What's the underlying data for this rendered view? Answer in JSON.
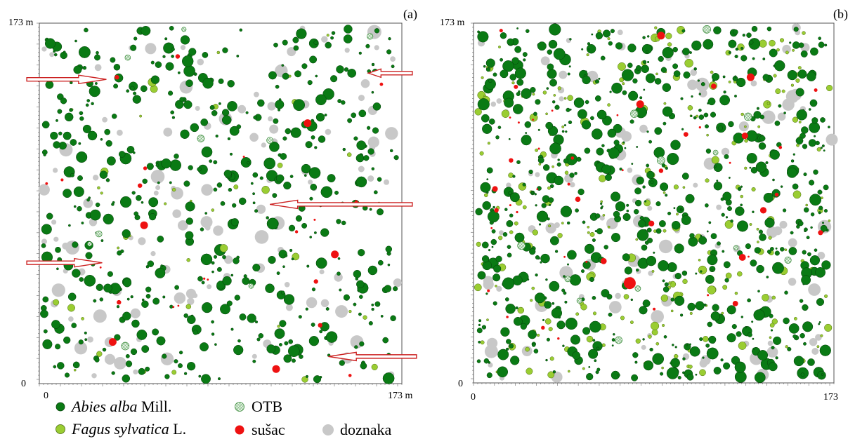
{
  "figure": {
    "panels": [
      {
        "tag": "(a)",
        "x_min_label": "0",
        "x_max_label": "173 m",
        "y_min_label": "0",
        "y_max_label": "173 m"
      },
      {
        "tag": "(b)",
        "x_min_label": "0",
        "x_max_label": "173",
        "y_min_label": "0",
        "y_max_label": "173 m"
      }
    ],
    "legend": {
      "abies_italic": "Abies alba",
      "abies_rest": " Mill.",
      "fagus_italic": "Fagus sylvatica",
      "fagus_rest": " L.",
      "otb": "OTB",
      "susac": "sušac",
      "doznaka": "doznaka"
    }
  },
  "colors": {
    "abies": "#0a7a14",
    "abies_stroke": "#063d0a",
    "fagus": "#9acd32",
    "fagus_stroke": "#4a6a10",
    "susac": "#ee1111",
    "doznaka": "#c8c8c8",
    "otb_fill": "#e6f5e6",
    "otb_stroke": "#3a8a3a",
    "arrow": "#cc2222"
  },
  "chart_data": [
    {
      "type": "scatter",
      "panel": "(a)",
      "xlim": [
        0,
        173
      ],
      "ylim": [
        0,
        173
      ],
      "series_counts": {
        "Abies alba Mill.": 520,
        "Fagus sylvatica L.": 40,
        "sušac": 14,
        "doznaka": 120,
        "OTB": 6
      },
      "highlighted_points": [
        {
          "series": "sušac",
          "x": 37,
          "y": 147,
          "size": "small"
        },
        {
          "series": "sušac",
          "x": 66,
          "y": 157,
          "size": "small"
        },
        {
          "series": "sušac",
          "x": 128,
          "y": 125,
          "size": "medium"
        },
        {
          "series": "sušac",
          "x": 50,
          "y": 76,
          "size": "medium"
        },
        {
          "series": "sušac",
          "x": 48,
          "y": 95,
          "size": "small"
        },
        {
          "series": "sušac",
          "x": 141,
          "y": 62,
          "size": "medium"
        },
        {
          "series": "sušac",
          "x": 132,
          "y": 49,
          "size": "small"
        },
        {
          "series": "sušac",
          "x": 38,
          "y": 39,
          "size": "small"
        },
        {
          "series": "sušac",
          "x": 134,
          "y": 28,
          "size": "small"
        },
        {
          "series": "sušac",
          "x": 35,
          "y": 20,
          "size": "medium"
        },
        {
          "series": "sušac",
          "x": 113,
          "y": 7,
          "size": "medium"
        },
        {
          "series": "Fagus sylvatica L.",
          "x": 108,
          "y": 93,
          "size": "medium"
        },
        {
          "series": "Fagus sylvatica L.",
          "x": 88,
          "y": 65,
          "size": "medium"
        },
        {
          "series": "OTB",
          "x": 41,
          "y": 18,
          "size": "medium"
        },
        {
          "series": "OTB",
          "x": 69,
          "y": 170,
          "size": "small"
        },
        {
          "series": "OTB",
          "x": 24,
          "y": 67,
          "size": "small"
        }
      ],
      "annotations": [
        {
          "kind": "arrow",
          "direction": "right",
          "x_from": -6,
          "x_to": 32,
          "y": 146
        },
        {
          "kind": "arrow",
          "direction": "left",
          "x_from": 178,
          "x_to": 157,
          "y": 149
        },
        {
          "kind": "arrow",
          "direction": "left",
          "x_from": 178,
          "x_to": 110,
          "y": 86
        },
        {
          "kind": "arrow",
          "direction": "right",
          "x_from": -6,
          "x_to": 30,
          "y": 58
        },
        {
          "kind": "arrow",
          "direction": "left",
          "x_from": 180,
          "x_to": 138,
          "y": 13
        }
      ]
    },
    {
      "type": "scatter",
      "panel": "(b)",
      "xlim": [
        0,
        173
      ],
      "ylim": [
        0,
        173
      ],
      "series_counts": {
        "Abies alba Mill.": 720,
        "Fagus sylvatica L.": 260,
        "sušac": 40,
        "doznaka": 110,
        "OTB": 8
      },
      "highlighted_points": [
        {
          "series": "sušac",
          "x": 90,
          "y": 167,
          "size": "medium"
        },
        {
          "series": "sušac",
          "x": 133,
          "y": 147,
          "size": "medium"
        },
        {
          "series": "sušac",
          "x": 80,
          "y": 134,
          "size": "medium"
        },
        {
          "series": "sušac",
          "x": 18,
          "y": 107,
          "size": "small"
        },
        {
          "series": "sušac",
          "x": 90,
          "y": 102,
          "size": "small"
        },
        {
          "series": "sušac",
          "x": 11,
          "y": 83,
          "size": "small"
        },
        {
          "series": "sušac",
          "x": 75,
          "y": 48,
          "size": "large"
        },
        {
          "series": "doznaka",
          "x": 172,
          "y": 117,
          "size": "large"
        },
        {
          "series": "OTB",
          "x": 112,
          "y": 170,
          "size": "medium"
        },
        {
          "series": "OTB",
          "x": 90,
          "y": 107,
          "size": "medium"
        },
        {
          "series": "OTB",
          "x": 23,
          "y": 66,
          "size": "medium"
        },
        {
          "series": "OTB",
          "x": 126,
          "y": 65,
          "size": "small"
        }
      ]
    }
  ]
}
